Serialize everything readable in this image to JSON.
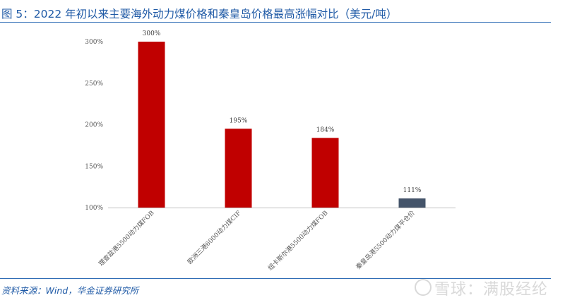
{
  "title": "图 5：2022 年初以来主要海外动力煤价格和秦皇岛价格最高涨幅对比（美元/吨）",
  "source": "资料来源：Wind，华金证券研究所",
  "watermark": "雪球：满股经纶",
  "colors": {
    "accent_red": "#c00000",
    "accent_navy": "#44546a",
    "title_blue": "#1f5aa6"
  },
  "chart_data": {
    "type": "bar",
    "categories": [
      "理查兹港5500动力煤FOB",
      "欧洲三港6000动力煤CIF",
      "纽卡斯尔港5500动力煤FOB",
      "秦皇岛港5500动力煤平仓价"
    ],
    "values": [
      300,
      195,
      184,
      111
    ],
    "value_labels": [
      "300%",
      "195%",
      "184%",
      "111%"
    ],
    "bar_colors": [
      "#c00000",
      "#c00000",
      "#c00000",
      "#44546a"
    ],
    "yticks": [
      100,
      150,
      200,
      250,
      300
    ],
    "ytick_labels": [
      "100%",
      "150%",
      "200%",
      "250%",
      "300%"
    ],
    "ylim": [
      100,
      300
    ],
    "xlabel": "",
    "ylabel": "",
    "grid": false,
    "legend": "none"
  }
}
